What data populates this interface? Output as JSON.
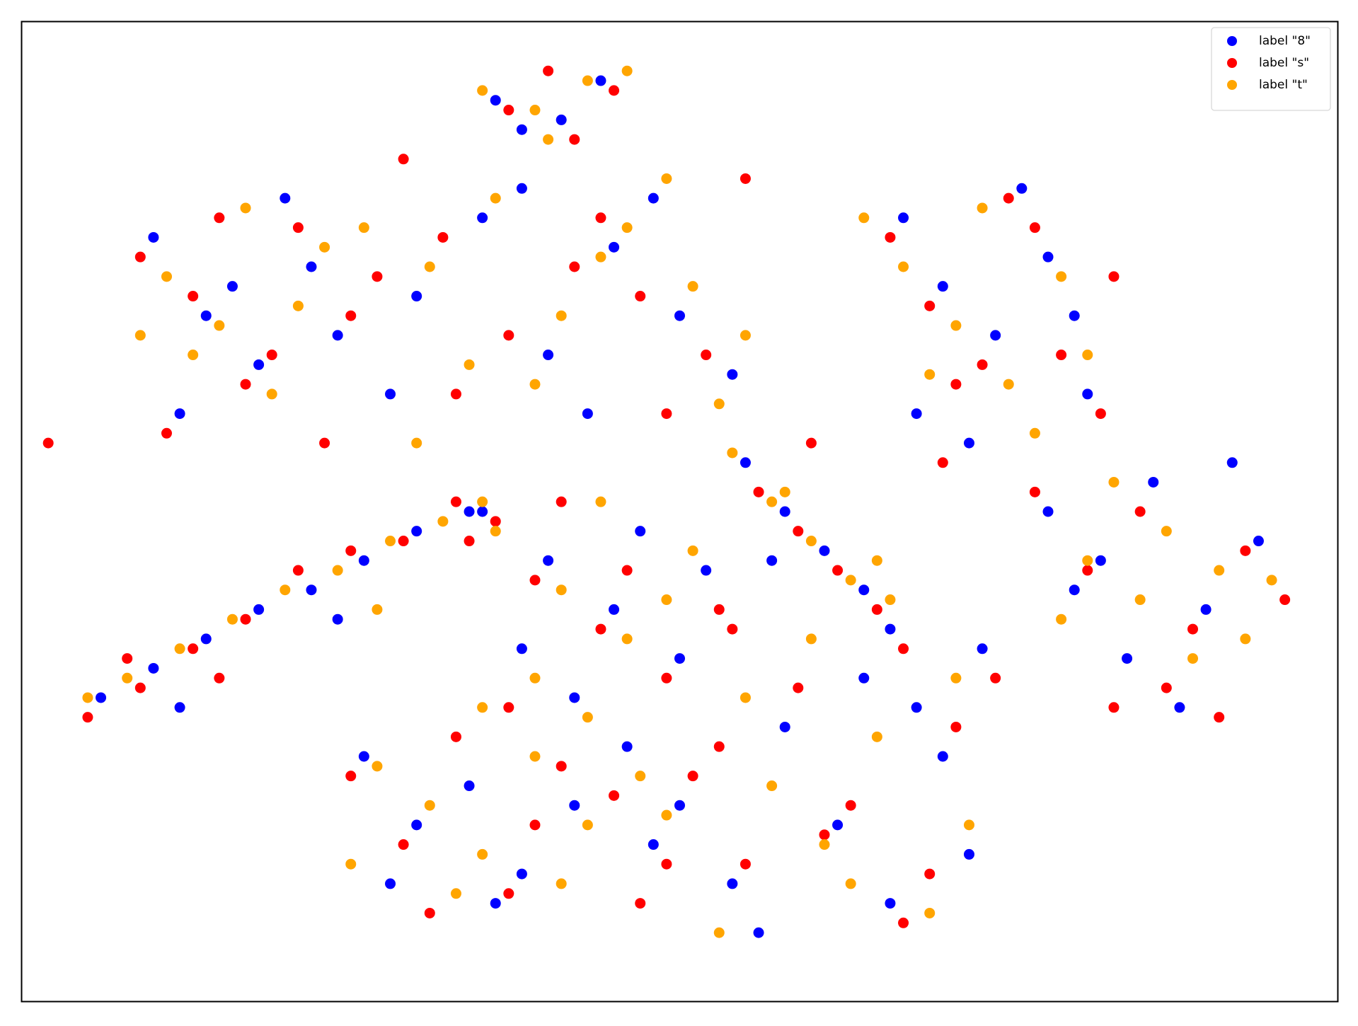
{
  "chart_data": {
    "type": "scatter",
    "legend": "upper right",
    "grid": false,
    "xlim": [
      0,
      100
    ],
    "ylim": [
      0,
      100
    ],
    "series": [
      {
        "name": "label \"8\"",
        "color": "#0000ff",
        "x": [
          36,
          41,
          44,
          38,
          10,
          14,
          18,
          22,
          12,
          20,
          16,
          24,
          30,
          35,
          40,
          45,
          50,
          54,
          28,
          38,
          48,
          43,
          67,
          70,
          74,
          78,
          81,
          68,
          72,
          76,
          80,
          78,
          82,
          86,
          90,
          94,
          84,
          88,
          80,
          92,
          6,
          10,
          14,
          18,
          22,
          26,
          30,
          34,
          12,
          24,
          35,
          40,
          45,
          50,
          38,
          47,
          52,
          42,
          55,
          58,
          61,
          64,
          66,
          57,
          26,
          30,
          34,
          38,
          42,
          46,
          28,
          36,
          48,
          50,
          54,
          58,
          62,
          66,
          70,
          72,
          64,
          56,
          68,
          73
        ],
        "y": [
          92,
          90,
          94,
          89,
          78,
          70,
          65,
          75,
          60,
          82,
          73,
          68,
          72,
          80,
          66,
          77,
          70,
          64,
          62,
          83,
          82,
          60,
          80,
          73,
          68,
          76,
          62,
          60,
          57,
          83,
          70,
          50,
          45,
          53,
          40,
          47,
          35,
          30,
          42,
          55,
          31,
          34,
          37,
          40,
          42,
          45,
          48,
          50,
          30,
          39,
          50,
          45,
          40,
          35,
          36,
          48,
          44,
          31,
          55,
          50,
          46,
          42,
          38,
          45,
          25,
          18,
          22,
          13,
          20,
          26,
          12,
          10,
          16,
          20,
          12,
          28,
          18,
          10,
          25,
          15,
          33,
          7,
          30,
          36
        ]
      },
      {
        "name": "label \"s\"",
        "color": "#ff0000",
        "x": [
          37,
          42,
          45,
          40,
          9,
          13,
          17,
          21,
          25,
          11,
          19,
          15,
          23,
          27,
          32,
          37,
          42,
          47,
          52,
          55,
          33,
          44,
          49,
          29,
          66,
          69,
          73,
          77,
          82,
          70,
          75,
          79,
          83,
          71,
          77,
          81,
          85,
          89,
          93,
          96,
          87,
          83,
          91,
          5,
          9,
          13,
          17,
          21,
          25,
          29,
          33,
          36,
          15,
          8,
          2,
          34,
          39,
          44,
          49,
          53,
          37,
          46,
          41,
          54,
          56,
          59,
          62,
          65,
          67,
          60,
          25,
          29,
          33,
          37,
          41,
          45,
          49,
          31,
          39,
          47,
          51,
          55,
          59,
          63,
          67,
          71,
          74,
          61,
          53,
          69
        ],
        "y": [
          91,
          88,
          93,
          95,
          76,
          72,
          63,
          79,
          70,
          58,
          66,
          80,
          57,
          74,
          78,
          68,
          75,
          72,
          66,
          84,
          62,
          80,
          60,
          86,
          78,
          71,
          65,
          79,
          60,
          55,
          82,
          66,
          74,
          63,
          52,
          44,
          50,
          38,
          46,
          41,
          32,
          30,
          29,
          29,
          32,
          36,
          39,
          44,
          46,
          47,
          51,
          49,
          33,
          35,
          57,
          47,
          43,
          38,
          33,
          40,
          30,
          44,
          51,
          38,
          52,
          48,
          44,
          40,
          36,
          57,
          23,
          16,
          27,
          11,
          24,
          21,
          14,
          9,
          18,
          10,
          23,
          14,
          32,
          20,
          8,
          28,
          33,
          17,
          26,
          13
        ]
      },
      {
        "name": "label \"t\"",
        "color": "#ffa500",
        "x": [
          35,
          39,
          43,
          46,
          40,
          11,
          15,
          19,
          23,
          13,
          17,
          21,
          9,
          26,
          31,
          36,
          41,
          46,
          51,
          55,
          34,
          39,
          44,
          49,
          30,
          53,
          67,
          71,
          75,
          79,
          81,
          69,
          73,
          64,
          77,
          83,
          87,
          91,
          95,
          81,
          85,
          89,
          93,
          79,
          5,
          8,
          12,
          16,
          20,
          24,
          28,
          32,
          35,
          27,
          36,
          41,
          46,
          51,
          39,
          44,
          49,
          35,
          43,
          54,
          57,
          60,
          63,
          66,
          58,
          65,
          27,
          31,
          35,
          39,
          43,
          47,
          25,
          33,
          41,
          49,
          53,
          57,
          61,
          65,
          69,
          72,
          55,
          63,
          71,
          60
        ],
        "y": [
          93,
          91,
          94,
          95,
          88,
          74,
          69,
          62,
          77,
          66,
          81,
          71,
          68,
          79,
          75,
          82,
          70,
          79,
          73,
          68,
          65,
          63,
          76,
          84,
          57,
          61,
          75,
          69,
          63,
          74,
          66,
          64,
          81,
          80,
          58,
          53,
          48,
          44,
          43,
          45,
          41,
          35,
          37,
          39,
          31,
          33,
          36,
          39,
          42,
          44,
          47,
          49,
          51,
          40,
          48,
          42,
          37,
          46,
          33,
          51,
          41,
          30,
          29,
          56,
          51,
          47,
          43,
          41,
          52,
          45,
          24,
          20,
          15,
          25,
          18,
          23,
          14,
          11,
          12,
          19,
          7,
          22,
          16,
          27,
          9,
          18,
          31,
          12,
          33,
          37
        ]
      }
    ]
  }
}
